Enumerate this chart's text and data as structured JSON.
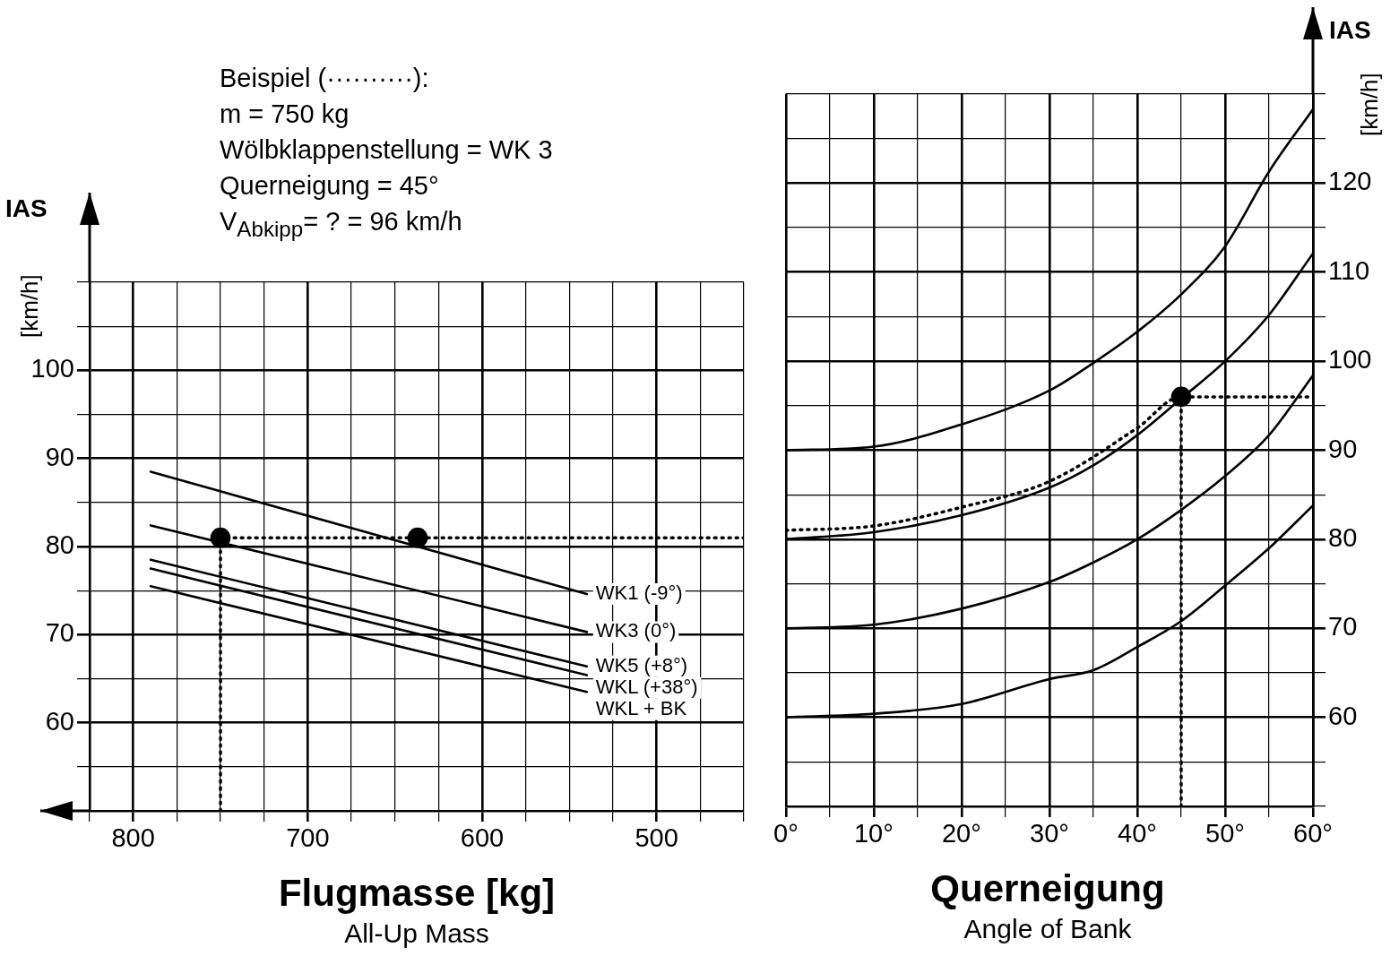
{
  "chart_data": [
    {
      "type": "line",
      "xlabel": "Flugmasse [kg]",
      "ylabel": "IAS [km/h]",
      "annotations": [
        "Beispiel (··········):",
        "m = 750 kg",
        "Wölbklappenstellung = WK 3",
        "Querneigung = 45°",
        "V$_{Abkipp}$= ? = 96 km/h",
        "All-Up Mass"
      ],
      "xlim": [
        825,
        450
      ],
      "xticks": [
        {
          "value": 825,
          "label": null
        },
        800,
        {
          "value": 775,
          "label": null
        },
        {
          "value": 750,
          "label": null
        },
        {
          "value": 725,
          "label": null
        },
        700,
        {
          "value": 675,
          "label": null
        },
        {
          "value": 650,
          "label": null
        },
        {
          "value": 625,
          "label": null
        },
        600,
        {
          "value": 575,
          "label": null
        },
        {
          "value": 550,
          "label": null
        },
        {
          "value": 525,
          "label": null
        },
        500,
        {
          "value": 475,
          "label": null
        },
        {
          "value": 450,
          "label": null
        }
      ],
      "ylim": [
        50,
        110
      ],
      "yticks": [
        {
          "value": 50,
          "label": null
        },
        {
          "value": 55,
          "label": null
        },
        60,
        {
          "value": 65,
          "label": null
        },
        70,
        {
          "value": 75,
          "label": null
        },
        80,
        {
          "value": 85,
          "label": null
        },
        90,
        {
          "value": 95,
          "label": null
        },
        100,
        {
          "value": 105,
          "label": null
        },
        {
          "value": 110,
          "label": null
        }
      ],
      "grid": true,
      "legend": false,
      "series": [
        {
          "name": "WK1 (-9°)",
          "color": "#000000",
          "x": [
            790,
            540
          ],
          "values": [
            88.5,
            74.6
          ]
        },
        {
          "name": "WK3 (0°)",
          "color": "#000000",
          "x": [
            790,
            540
          ],
          "values": [
            82.4,
            70.3
          ]
        },
        {
          "name": "WK5 (+8°)",
          "color": "#000000",
          "x": [
            790,
            540
          ],
          "values": [
            78.5,
            66.4
          ]
        },
        {
          "name": "WKL (+38°)",
          "color": "#000000",
          "x": [
            790,
            540
          ],
          "values": [
            77.5,
            65.4
          ]
        },
        {
          "name": "WKL + BK",
          "color": "#000000",
          "x": [
            790,
            540
          ],
          "values": [
            75.5,
            63.5
          ]
        },
        {
          "type": "line",
          "color": "#000000",
          "line_style": "dotted",
          "x": [
            750,
            750,
            450
          ],
          "values": [
            50,
            81,
            81
          ]
        },
        {
          "type": "scatter",
          "color": "#000000",
          "marker": "circle",
          "x": [
            750,
            637
          ],
          "values": [
            81,
            81
          ]
        }
      ]
    },
    {
      "type": "line",
      "xlabel": "Querneigung",
      "ylabel": "IAS [km/h]",
      "annotations": [
        "Angle of Bank"
      ],
      "xlim": [
        0,
        60
      ],
      "xticks": [
        {
          "value": 0,
          "label": "0°"
        },
        {
          "value": 5,
          "label": null
        },
        {
          "value": 10,
          "label": "10°"
        },
        {
          "value": 15,
          "label": null
        },
        {
          "value": 20,
          "label": "20°"
        },
        {
          "value": 25,
          "label": null
        },
        {
          "value": 30,
          "label": "30°"
        },
        {
          "value": 35,
          "label": null
        },
        {
          "value": 40,
          "label": "40°"
        },
        {
          "value": 45,
          "label": null
        },
        {
          "value": 50,
          "label": "50°"
        },
        {
          "value": 55,
          "label": null
        },
        {
          "value": 60,
          "label": "60°"
        }
      ],
      "ylim": [
        50,
        130
      ],
      "yticks": [
        {
          "value": 50,
          "label": null
        },
        {
          "value": 55,
          "label": null
        },
        60,
        {
          "value": 65,
          "label": null
        },
        70,
        {
          "value": 75,
          "label": null
        },
        80,
        {
          "value": 85,
          "label": null
        },
        90,
        {
          "value": 95,
          "label": null
        },
        100,
        {
          "value": 105,
          "label": null
        },
        110,
        {
          "value": 115,
          "label": null
        },
        120,
        {
          "value": 125,
          "label": null
        },
        {
          "value": 130,
          "label": null
        }
      ],
      "grid": true,
      "legend": false,
      "x": [
        0,
        10,
        20,
        30,
        35,
        40,
        45,
        50,
        55,
        60
      ],
      "series": [
        {
          "color": "#000000",
          "values": [
            60,
            60.4,
            61.5,
            64.3,
            65.3,
            67.9,
            70.8,
            74.8,
            79,
            83.8
          ]
        },
        {
          "color": "#000000",
          "values": [
            70,
            70.4,
            72.2,
            75.2,
            77.4,
            80,
            83.3,
            87.1,
            91.7,
            98.4
          ]
        },
        {
          "color": "#000000",
          "values": [
            80,
            80.8,
            82.7,
            85.8,
            88.3,
            91.7,
            95.8,
            100,
            105.2,
            112.1
          ]
        },
        {
          "color": "#000000",
          "values": [
            90,
            90.4,
            92.9,
            96.7,
            99.8,
            103.3,
            107.5,
            112.9,
            121.3,
            128.3
          ]
        },
        {
          "type": "line",
          "color": "#000000",
          "line_style": "dotted",
          "x": [
            0,
            10,
            20,
            30,
            40,
            45,
            60
          ],
          "values": [
            81,
            81.5,
            83.6,
            86.5,
            92.5,
            96,
            96
          ]
        },
        {
          "type": "line",
          "color": "#000000",
          "line_style": "dotted",
          "x": [
            45,
            45
          ],
          "values": [
            50,
            96
          ]
        },
        {
          "type": "scatter",
          "color": "#000000",
          "marker": "circle",
          "x": [
            45
          ],
          "values": [
            96
          ]
        }
      ]
    }
  ]
}
